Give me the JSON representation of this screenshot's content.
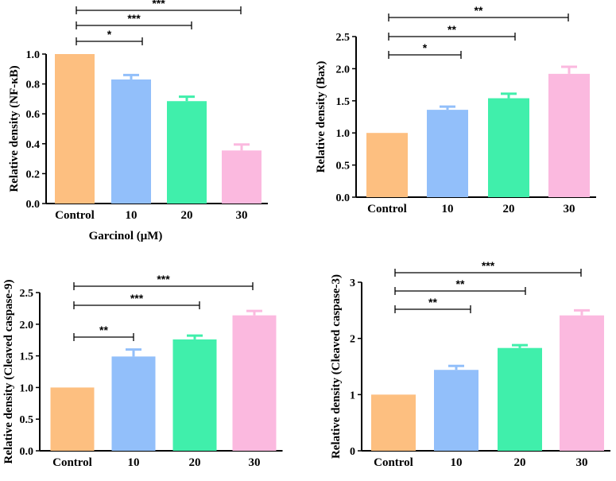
{
  "colors": [
    "#FDBF80",
    "#92BFFA",
    "#40EFAB",
    "#FBB9DF"
  ],
  "xaxis_label": "Garcinol (μM)",
  "chart_data": [
    {
      "type": "bar",
      "panel": "top-left",
      "categories": [
        "Control",
        "10",
        "20",
        "30"
      ],
      "values": [
        1.0,
        0.83,
        0.685,
        0.355
      ],
      "errors": [
        0,
        0.03,
        0.03,
        0.04
      ],
      "ylabel": "Relative density (NF-κB)",
      "ylim": [
        0,
        1.0
      ],
      "yticks": [
        "0.0",
        "0.2",
        "0.4",
        "0.6",
        "0.8",
        "1.0"
      ],
      "ytick_values": [
        0,
        0.2,
        0.4,
        0.6,
        0.8,
        1.0
      ],
      "significance": [
        {
          "from": 0,
          "to": 1,
          "label": "*"
        },
        {
          "from": 0,
          "to": 2,
          "label": "***"
        },
        {
          "from": 0,
          "to": 3,
          "label": "***"
        }
      ]
    },
    {
      "type": "bar",
      "panel": "top-right",
      "categories": [
        "Control",
        "10",
        "20",
        "30"
      ],
      "values": [
        1.0,
        1.36,
        1.54,
        1.92
      ],
      "errors": [
        0,
        0.05,
        0.07,
        0.11
      ],
      "ylabel": "Relative density (Bax)",
      "ylim": [
        0,
        2.5
      ],
      "yticks": [
        "0.0",
        "0.5",
        "1.0",
        "1.5",
        "2.0",
        "2.5"
      ],
      "ytick_values": [
        0,
        0.5,
        1.0,
        1.5,
        2.0,
        2.5
      ],
      "significance": [
        {
          "from": 0,
          "to": 1,
          "label": "*"
        },
        {
          "from": 0,
          "to": 2,
          "label": "**"
        },
        {
          "from": 0,
          "to": 3,
          "label": "**"
        }
      ]
    },
    {
      "type": "bar",
      "panel": "bottom-left",
      "categories": [
        "Control",
        "10",
        "20",
        "30"
      ],
      "values": [
        1.0,
        1.49,
        1.76,
        2.14
      ],
      "errors": [
        0,
        0.11,
        0.06,
        0.07
      ],
      "ylabel": "Relative density (Cleaved caspase-9)",
      "ylim": [
        0,
        2.5
      ],
      "yticks": [
        "0.0",
        "0.5",
        "1.0",
        "1.5",
        "2.0",
        "2.5"
      ],
      "ytick_values": [
        0,
        0.5,
        1.0,
        1.5,
        2.0,
        2.5
      ],
      "significance": [
        {
          "from": 0,
          "to": 1,
          "label": "**"
        },
        {
          "from": 0,
          "to": 2,
          "label": "***"
        },
        {
          "from": 0,
          "to": 3,
          "label": "***"
        }
      ]
    },
    {
      "type": "bar",
      "panel": "bottom-right",
      "categories": [
        "Control",
        "10",
        "20",
        "30"
      ],
      "values": [
        1.0,
        1.44,
        1.83,
        2.41
      ],
      "errors": [
        0,
        0.07,
        0.05,
        0.09
      ],
      "ylabel": "Relative density (Cleaved caspase-3)",
      "ylim": [
        0,
        3
      ],
      "yticks": [
        "0",
        "1",
        "2",
        "3"
      ],
      "ytick_values": [
        0,
        1,
        2,
        3
      ],
      "significance": [
        {
          "from": 0,
          "to": 1,
          "label": "**"
        },
        {
          "from": 0,
          "to": 2,
          "label": "**"
        },
        {
          "from": 0,
          "to": 3,
          "label": "***"
        }
      ]
    }
  ]
}
